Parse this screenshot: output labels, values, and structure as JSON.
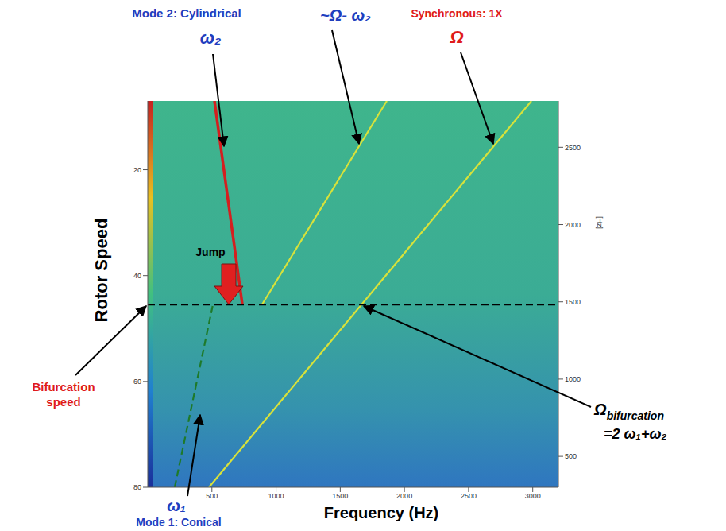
{
  "chart_data": {
    "type": "line",
    "x_label": "Frequency (Hz)",
    "y_label": "Rotor Speed",
    "y_unit_label": "[Hz]",
    "xlim": [
      0,
      3200
    ],
    "xticks": [
      500,
      1000,
      1500,
      2000,
      2500,
      3000
    ],
    "ylim": [
      300,
      2800
    ],
    "yticks": [
      500,
      1000,
      1500,
      2000,
      2500
    ],
    "y2lim": [
      80,
      7
    ],
    "y2ticks": [
      20,
      40,
      60,
      80
    ],
    "grid": false,
    "series": [
      {
        "name": "ω₂",
        "color": "#d41f1f",
        "line_style": "solid",
        "x": [
          737,
          520
        ],
        "values": [
          1483,
          2800
        ]
      },
      {
        "name": "~Ω- ω₂",
        "color": "#d8e23a",
        "line_style": "solid",
        "x": [
          891,
          1863
        ],
        "values": [
          1483,
          2800
        ]
      },
      {
        "name": "Ω",
        "color": "#d8e23a",
        "line_style": "solid",
        "x": [
          477,
          2990
        ],
        "values": [
          300,
          2800
        ]
      },
      {
        "name": "ω₁",
        "color": "#1e7a2a",
        "line_style": "dashed",
        "x": [
          210,
          508
        ],
        "values": [
          300,
          1483
        ]
      },
      {
        "name": "Bifurcation speed",
        "color": "#000000",
        "line_style": "dashed",
        "x": [
          0,
          3200
        ],
        "values": [
          1483,
          1483
        ]
      }
    ],
    "annotations": {
      "mode2": "Mode 2: Cylindrical",
      "synchronous": "Synchronous: 1X",
      "jump": "Jump",
      "mode1": "Mode 1: Conical",
      "bifurcation_symbol": "Ω",
      "bifurcation_subscript": "bifurcation",
      "bifurcation_formula": "=2 ω₁+ω₂"
    }
  }
}
